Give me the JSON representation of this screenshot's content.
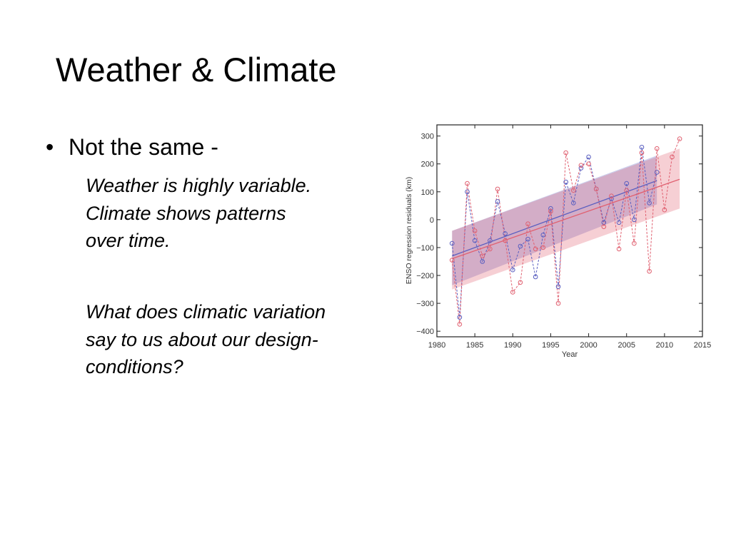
{
  "slide": {
    "title": "Weather & Climate",
    "bullet": "Not the same -",
    "para1": [
      "Weather is highly variable.",
      "Climate shows patterns",
      "over time."
    ],
    "para2": [
      "What does climatic variation",
      "say to us about our design-",
      "conditions?"
    ]
  },
  "chart_data": {
    "type": "line",
    "xlabel": "Year",
    "ylabel": "ENSO regression residuals (km)",
    "xlim": [
      1980,
      2015
    ],
    "ylim": [
      -420,
      340
    ],
    "xticks": [
      1980,
      1985,
      1990,
      1995,
      2000,
      2005,
      2010,
      2015
    ],
    "yticks": [
      -400,
      -300,
      -200,
      -100,
      0,
      100,
      200,
      300
    ],
    "grid": false,
    "series": [
      {
        "color": "#5a5fc0",
        "x": [
          1982,
          1983,
          1984,
          1985,
          1986,
          1987,
          1988,
          1989,
          1990,
          1991,
          1992,
          1993,
          1994,
          1995,
          1996,
          1997,
          1998,
          1999,
          2000,
          2001,
          2002,
          2003,
          2004,
          2005,
          2006,
          2007,
          2008,
          2009
        ],
        "y": [
          -85,
          -350,
          100,
          -75,
          -150,
          -75,
          65,
          -50,
          -180,
          -95,
          -70,
          -205,
          -55,
          40,
          -240,
          135,
          60,
          185,
          225,
          110,
          -10,
          75,
          -10,
          130,
          0,
          260,
          60,
          170
        ],
        "trend": [
          -130,
          140
        ],
        "band_lower": [
          -235,
          55
        ],
        "band_upper": [
          -40,
          230
        ]
      },
      {
        "color": "#e06070",
        "x": [
          1982,
          1983,
          1984,
          1985,
          1986,
          1987,
          1988,
          1989,
          1990,
          1991,
          1992,
          1993,
          1994,
          1995,
          1996,
          1997,
          1998,
          1999,
          2000,
          2001,
          2002,
          2003,
          2004,
          2005,
          2006,
          2007,
          2008,
          2009,
          2010,
          2011,
          2012
        ],
        "y": [
          -145,
          -375,
          130,
          -40,
          -130,
          -105,
          110,
          -75,
          -260,
          -225,
          -15,
          -105,
          -100,
          30,
          -300,
          240,
          105,
          195,
          200,
          110,
          -25,
          85,
          -105,
          105,
          -85,
          240,
          -185,
          255,
          35,
          225,
          290
        ],
        "trend": [
          -140,
          145
        ],
        "band_lower": [
          -250,
          40
        ],
        "band_upper": [
          -40,
          255
        ]
      }
    ]
  }
}
